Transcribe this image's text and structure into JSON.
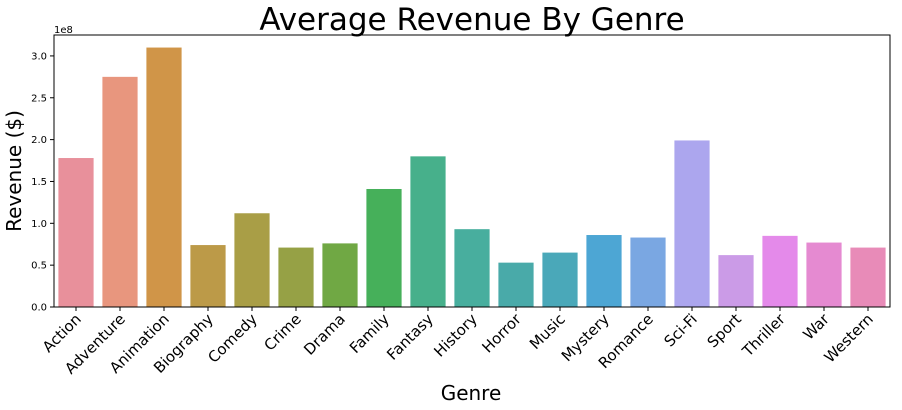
{
  "chart_data": {
    "type": "bar",
    "title": "Average Revenue By Genre",
    "xlabel": "Genre",
    "ylabel": "Revenue ($)",
    "y_multiplier": "1e8",
    "ylim": [
      0,
      3.25
    ],
    "yticks": [
      "0.0",
      "0.5",
      "1.0",
      "1.5",
      "2.0",
      "2.5",
      "3.0"
    ],
    "grid": false,
    "categories": [
      "Action",
      "Adventure",
      "Animation",
      "Biography",
      "Comedy",
      "Crime",
      "Drama",
      "Family",
      "Fantasy",
      "History",
      "Horror",
      "Music",
      "Mystery",
      "Romance",
      "Sci-Fi",
      "Sport",
      "Thriller",
      "War",
      "Western"
    ],
    "values": [
      1.78,
      2.75,
      3.1,
      0.74,
      1.12,
      0.71,
      0.76,
      1.41,
      1.8,
      0.93,
      0.53,
      0.65,
      0.86,
      0.83,
      1.99,
      0.62,
      0.85,
      0.77,
      0.71
    ],
    "colors": [
      "#e8909b",
      "#e8967e",
      "#d09548",
      "#bc9a48",
      "#a99e46",
      "#96a145",
      "#70a844",
      "#46b05a",
      "#47b08b",
      "#48ae9e",
      "#49aaa9",
      "#4aa8b9",
      "#4da6d4",
      "#7aa7e2",
      "#aca6ee",
      "#cb9be7",
      "#e48aea",
      "#e58ad1",
      "#e88bb8"
    ]
  }
}
